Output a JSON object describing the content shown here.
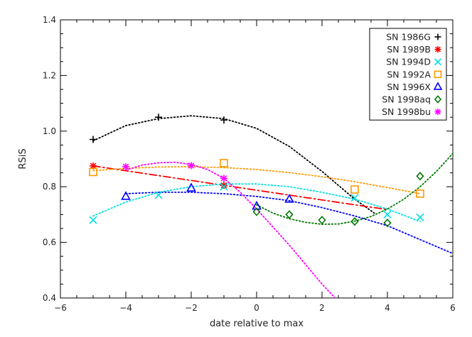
{
  "chart_data": {
    "type": "scatter",
    "title": "",
    "xlabel": "date relative to max",
    "ylabel": "RSiS",
    "xlim": [
      -6,
      6
    ],
    "ylim": [
      0.4,
      1.4
    ],
    "xticks": [
      -6,
      -4,
      -2,
      0,
      2,
      4,
      6
    ],
    "yticks": [
      0.4,
      0.6,
      0.8,
      1.0,
      1.2,
      1.4
    ],
    "xtick_labels": [
      "−6",
      "−4",
      "−2",
      "0",
      "2",
      "4",
      "6"
    ],
    "ytick_labels": [
      "0.4",
      "0.6",
      "0.8",
      "1.0",
      "1.2",
      "1.4"
    ],
    "grid": false,
    "legend_position": "top-right",
    "series": [
      {
        "name": "SN 1986G",
        "marker": "plus",
        "color": "#000000",
        "x": [
          -5,
          -3,
          -1
        ],
        "y": [
          0.97,
          1.05,
          1.04
        ],
        "fit": {
          "style": "dotted",
          "points": [
            [
              -5,
              0.965
            ],
            [
              -4,
              1.02
            ],
            [
              -3,
              1.045
            ],
            [
              -2,
              1.055
            ],
            [
              -1,
              1.045
            ],
            [
              0,
              1.01
            ],
            [
              1,
              0.945
            ],
            [
              2,
              0.855
            ],
            [
              3,
              0.755
            ],
            [
              3.6,
              0.705
            ]
          ]
        }
      },
      {
        "name": "SN 1989B",
        "marker": "asterisk",
        "color": "#ff0000",
        "x": [
          -5,
          -1
        ],
        "y": [
          0.875,
          0.805
        ],
        "fit": {
          "style": "dashdot",
          "points": [
            [
              -5,
              0.875
            ],
            [
              -3,
              0.84
            ],
            [
              -1,
              0.805
            ],
            [
              1,
              0.77
            ],
            [
              3,
              0.735
            ],
            [
              4,
              0.718
            ]
          ]
        }
      },
      {
        "name": "SN 1994D",
        "marker": "cross",
        "color": "#00e0e0",
        "x": [
          -5,
          -3,
          -1,
          3,
          4,
          5
        ],
        "y": [
          0.68,
          0.77,
          0.8,
          0.76,
          0.7,
          0.69
        ],
        "fit": {
          "style": "dotted",
          "points": [
            [
              -5,
              0.695
            ],
            [
              -4,
              0.745
            ],
            [
              -3,
              0.78
            ],
            [
              -2,
              0.8
            ],
            [
              -1,
              0.81
            ],
            [
              0,
              0.81
            ],
            [
              1,
              0.8
            ],
            [
              2,
              0.78
            ],
            [
              3,
              0.755
            ],
            [
              4,
              0.72
            ],
            [
              5,
              0.675
            ]
          ]
        }
      },
      {
        "name": "SN 1992A",
        "marker": "square",
        "color": "#ff9900",
        "x": [
          -5,
          -1,
          3,
          5
        ],
        "y": [
          0.853,
          0.885,
          0.79,
          0.775
        ],
        "fit": {
          "style": "dotted",
          "points": [
            [
              -5,
              0.858
            ],
            [
              -4,
              0.866
            ],
            [
              -3,
              0.871
            ],
            [
              -2,
              0.872
            ],
            [
              -1,
              0.869
            ],
            [
              0,
              0.862
            ],
            [
              1,
              0.851
            ],
            [
              2,
              0.836
            ],
            [
              3,
              0.818
            ],
            [
              4,
              0.797
            ],
            [
              5,
              0.775
            ]
          ]
        }
      },
      {
        "name": "SN 1996X",
        "marker": "triangle",
        "color": "#0000ff",
        "x": [
          -4,
          -2,
          0,
          1
        ],
        "y": [
          0.765,
          0.795,
          0.73,
          0.755
        ],
        "fit": {
          "style": "dotted",
          "points": [
            [
              -4,
              0.775
            ],
            [
              -3,
              0.78
            ],
            [
              -2,
              0.78
            ],
            [
              -1,
              0.775
            ],
            [
              0,
              0.765
            ],
            [
              1,
              0.75
            ],
            [
              2,
              0.725
            ],
            [
              3,
              0.695
            ],
            [
              4,
              0.66
            ],
            [
              5,
              0.61
            ],
            [
              6,
              0.56
            ]
          ]
        }
      },
      {
        "name": "SN 1998aq",
        "marker": "diamond",
        "color": "#007700",
        "x": [
          0,
          1,
          2,
          3,
          4,
          5
        ],
        "y": [
          0.71,
          0.7,
          0.68,
          0.675,
          0.67,
          0.838
        ],
        "fit": {
          "style": "dotted",
          "points": [
            [
              0,
              0.735
            ],
            [
              0.5,
              0.705
            ],
            [
              1,
              0.685
            ],
            [
              1.5,
              0.672
            ],
            [
              2,
              0.665
            ],
            [
              2.5,
              0.666
            ],
            [
              3,
              0.676
            ],
            [
              3.5,
              0.693
            ],
            [
              4,
              0.72
            ],
            [
              4.5,
              0.755
            ],
            [
              5,
              0.8
            ],
            [
              5.5,
              0.855
            ],
            [
              6,
              0.92
            ]
          ]
        }
      },
      {
        "name": "SN 1998bu",
        "marker": "asterisk",
        "color": "#ff00ff",
        "x": [
          -4,
          -2,
          -1
        ],
        "y": [
          0.872,
          0.876,
          0.83
        ],
        "fit": {
          "style": "dotted",
          "points": [
            [
              -4,
              0.86
            ],
            [
              -3.5,
              0.878
            ],
            [
              -3,
              0.886
            ],
            [
              -2.5,
              0.888
            ],
            [
              -2,
              0.88
            ],
            [
              -1.5,
              0.862
            ],
            [
              -1,
              0.83
            ],
            [
              -0.5,
              0.78
            ],
            [
              0,
              0.72
            ],
            [
              0.5,
              0.655
            ],
            [
              1,
              0.59
            ],
            [
              1.5,
              0.52
            ],
            [
              2,
              0.45
            ],
            [
              2.4,
              0.4
            ]
          ]
        }
      }
    ]
  }
}
